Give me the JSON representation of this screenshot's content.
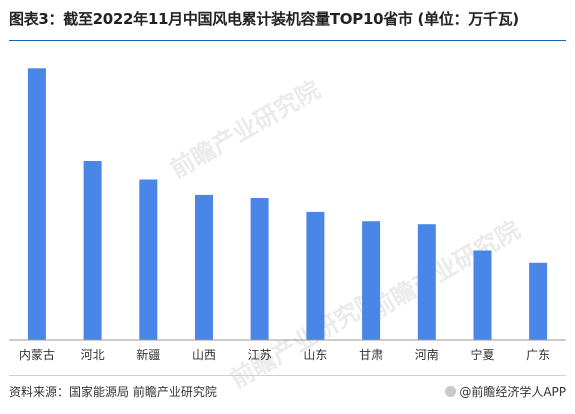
{
  "header": {
    "title": "图表3：截至2022年11月中国风电累计装机容量TOP10省市 (单位：万千瓦)"
  },
  "footer": {
    "source": "资料来源：国家能源局 前瞻产业研究院",
    "brand": "@前瞻经济学人APP"
  },
  "watermarks": [
    "前瞻产业研究院",
    "前瞻产业研究院",
    "前瞻产业研究院"
  ],
  "colors": {
    "bar": "#4a86e8",
    "axis": "#999999",
    "title_rule": "#1f5fb0"
  },
  "chart_data": {
    "type": "bar",
    "title": "图表3：截至2022年11月中国风电累计装机容量TOP10省市 (单位：万千瓦)",
    "xlabel": "",
    "ylabel": "",
    "categories": [
      "内蒙古",
      "河北",
      "新疆",
      "山西",
      "江苏",
      "山东",
      "甘肃",
      "河南",
      "宁夏",
      "广东"
    ],
    "values": [
      4400,
      2900,
      2600,
      2350,
      2300,
      2075,
      1925,
      1875,
      1450,
      1250
    ],
    "ylim": [
      0,
      4600
    ],
    "grid": false,
    "legend": "none"
  }
}
